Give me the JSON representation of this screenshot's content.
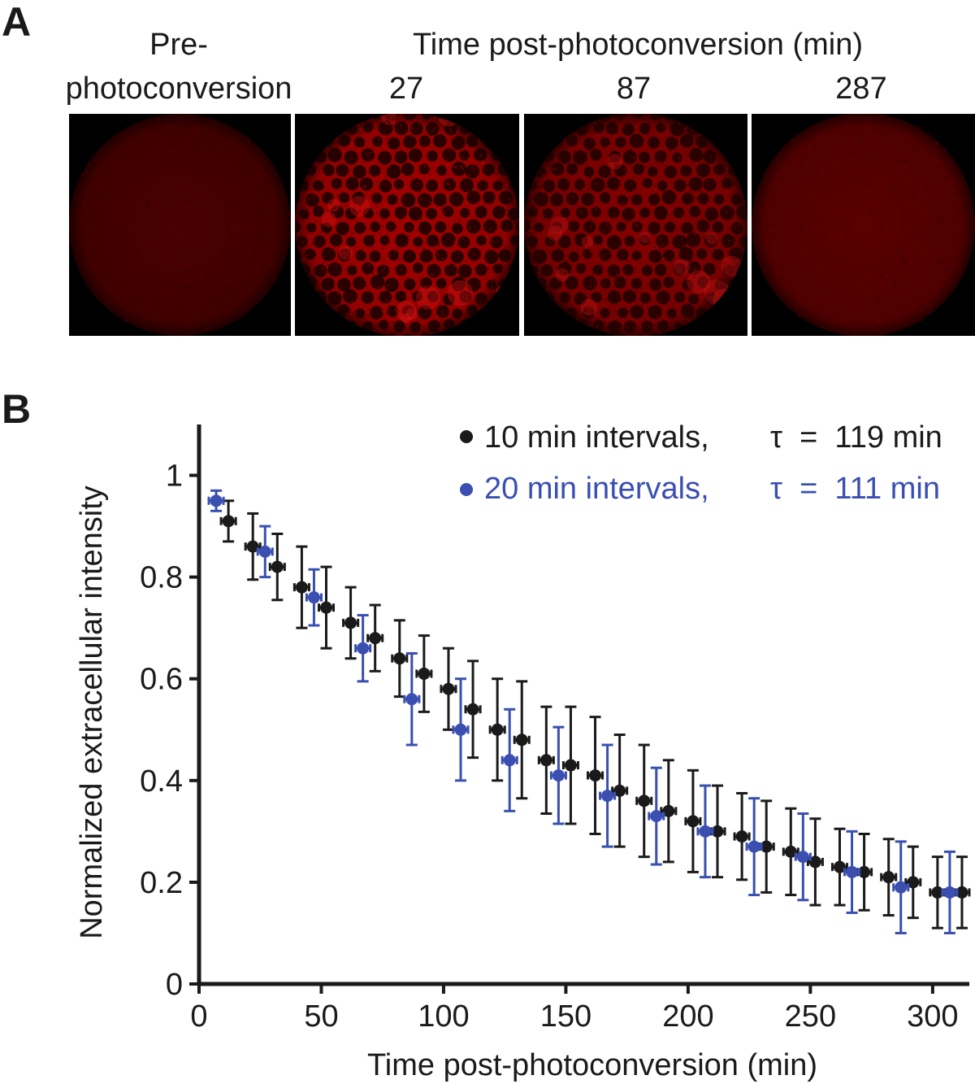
{
  "panel_a": {
    "letter": "A",
    "pre_label_line1": "Pre-",
    "pre_label_line2": "photoconversion",
    "time_header": "Time post-photoconversion (min)",
    "timepoints": [
      "27",
      "87",
      "287"
    ],
    "images": [
      {
        "name": "pre-photoconversion",
        "brightness": 0.12,
        "pattern": "faint"
      },
      {
        "name": "27",
        "brightness": 0.85,
        "pattern": "cells"
      },
      {
        "name": "87",
        "brightness": 0.6,
        "pattern": "cells"
      },
      {
        "name": "287",
        "brightness": 0.25,
        "pattern": "faint"
      }
    ]
  },
  "panel_b": {
    "letter": "B",
    "legend": [
      {
        "label": "10 min intervals,",
        "tau": "τ  =  119 min",
        "color": "#1a1a1a"
      },
      {
        "label": "20 min intervals,",
        "tau": "τ  =  111 min",
        "color": "#3a4fb0"
      }
    ]
  },
  "chart_data": {
    "type": "scatter",
    "xlabel": "Time post-photoconversion (min)",
    "ylabel": "Normalized extracellular intensity",
    "xlim": [
      0,
      315
    ],
    "ylim": [
      0,
      1.1
    ],
    "xticks": [
      "0",
      "50",
      "100",
      "150",
      "200",
      "250",
      "300"
    ],
    "xtick_values": [
      0,
      50,
      100,
      150,
      200,
      250,
      300
    ],
    "yticks": [
      "0",
      "0.2",
      "0.4",
      "0.6",
      "0.8",
      "1"
    ],
    "ytick_values": [
      0,
      0.2,
      0.4,
      0.6,
      0.8,
      1.0
    ],
    "grid": false,
    "legend_position": "top-right",
    "series": [
      {
        "name": "10 min intervals",
        "color": "#1a1a1a",
        "x_err": 3,
        "x": [
          12,
          22,
          32,
          42,
          52,
          62,
          72,
          82,
          92,
          102,
          112,
          122,
          132,
          142,
          152,
          162,
          172,
          182,
          192,
          202,
          212,
          222,
          232,
          242,
          252,
          262,
          272,
          282,
          292,
          302,
          312
        ],
        "y": [
          0.91,
          0.86,
          0.82,
          0.78,
          0.74,
          0.71,
          0.68,
          0.64,
          0.61,
          0.58,
          0.54,
          0.5,
          0.48,
          0.44,
          0.43,
          0.41,
          0.38,
          0.36,
          0.34,
          0.32,
          0.3,
          0.29,
          0.27,
          0.26,
          0.24,
          0.23,
          0.22,
          0.21,
          0.2,
          0.18,
          0.18
        ],
        "y_err": [
          0.04,
          0.065,
          0.065,
          0.08,
          0.08,
          0.07,
          0.065,
          0.075,
          0.075,
          0.08,
          0.095,
          0.1,
          0.115,
          0.105,
          0.115,
          0.115,
          0.11,
          0.11,
          0.1,
          0.1,
          0.09,
          0.085,
          0.09,
          0.085,
          0.085,
          0.075,
          0.075,
          0.075,
          0.07,
          0.07,
          0.07
        ]
      },
      {
        "name": "20 min intervals",
        "color": "#3a4fb0",
        "x_err": 3,
        "x": [
          7,
          27,
          47,
          67,
          87,
          107,
          127,
          147,
          167,
          187,
          207,
          227,
          247,
          267,
          287,
          307
        ],
        "y": [
          0.95,
          0.85,
          0.76,
          0.66,
          0.56,
          0.5,
          0.44,
          0.41,
          0.37,
          0.33,
          0.3,
          0.27,
          0.25,
          0.22,
          0.19,
          0.18
        ],
        "y_err": [
          0.02,
          0.05,
          0.055,
          0.065,
          0.09,
          0.1,
          0.1,
          0.095,
          0.1,
          0.095,
          0.09,
          0.095,
          0.085,
          0.08,
          0.09,
          0.08
        ]
      }
    ]
  }
}
